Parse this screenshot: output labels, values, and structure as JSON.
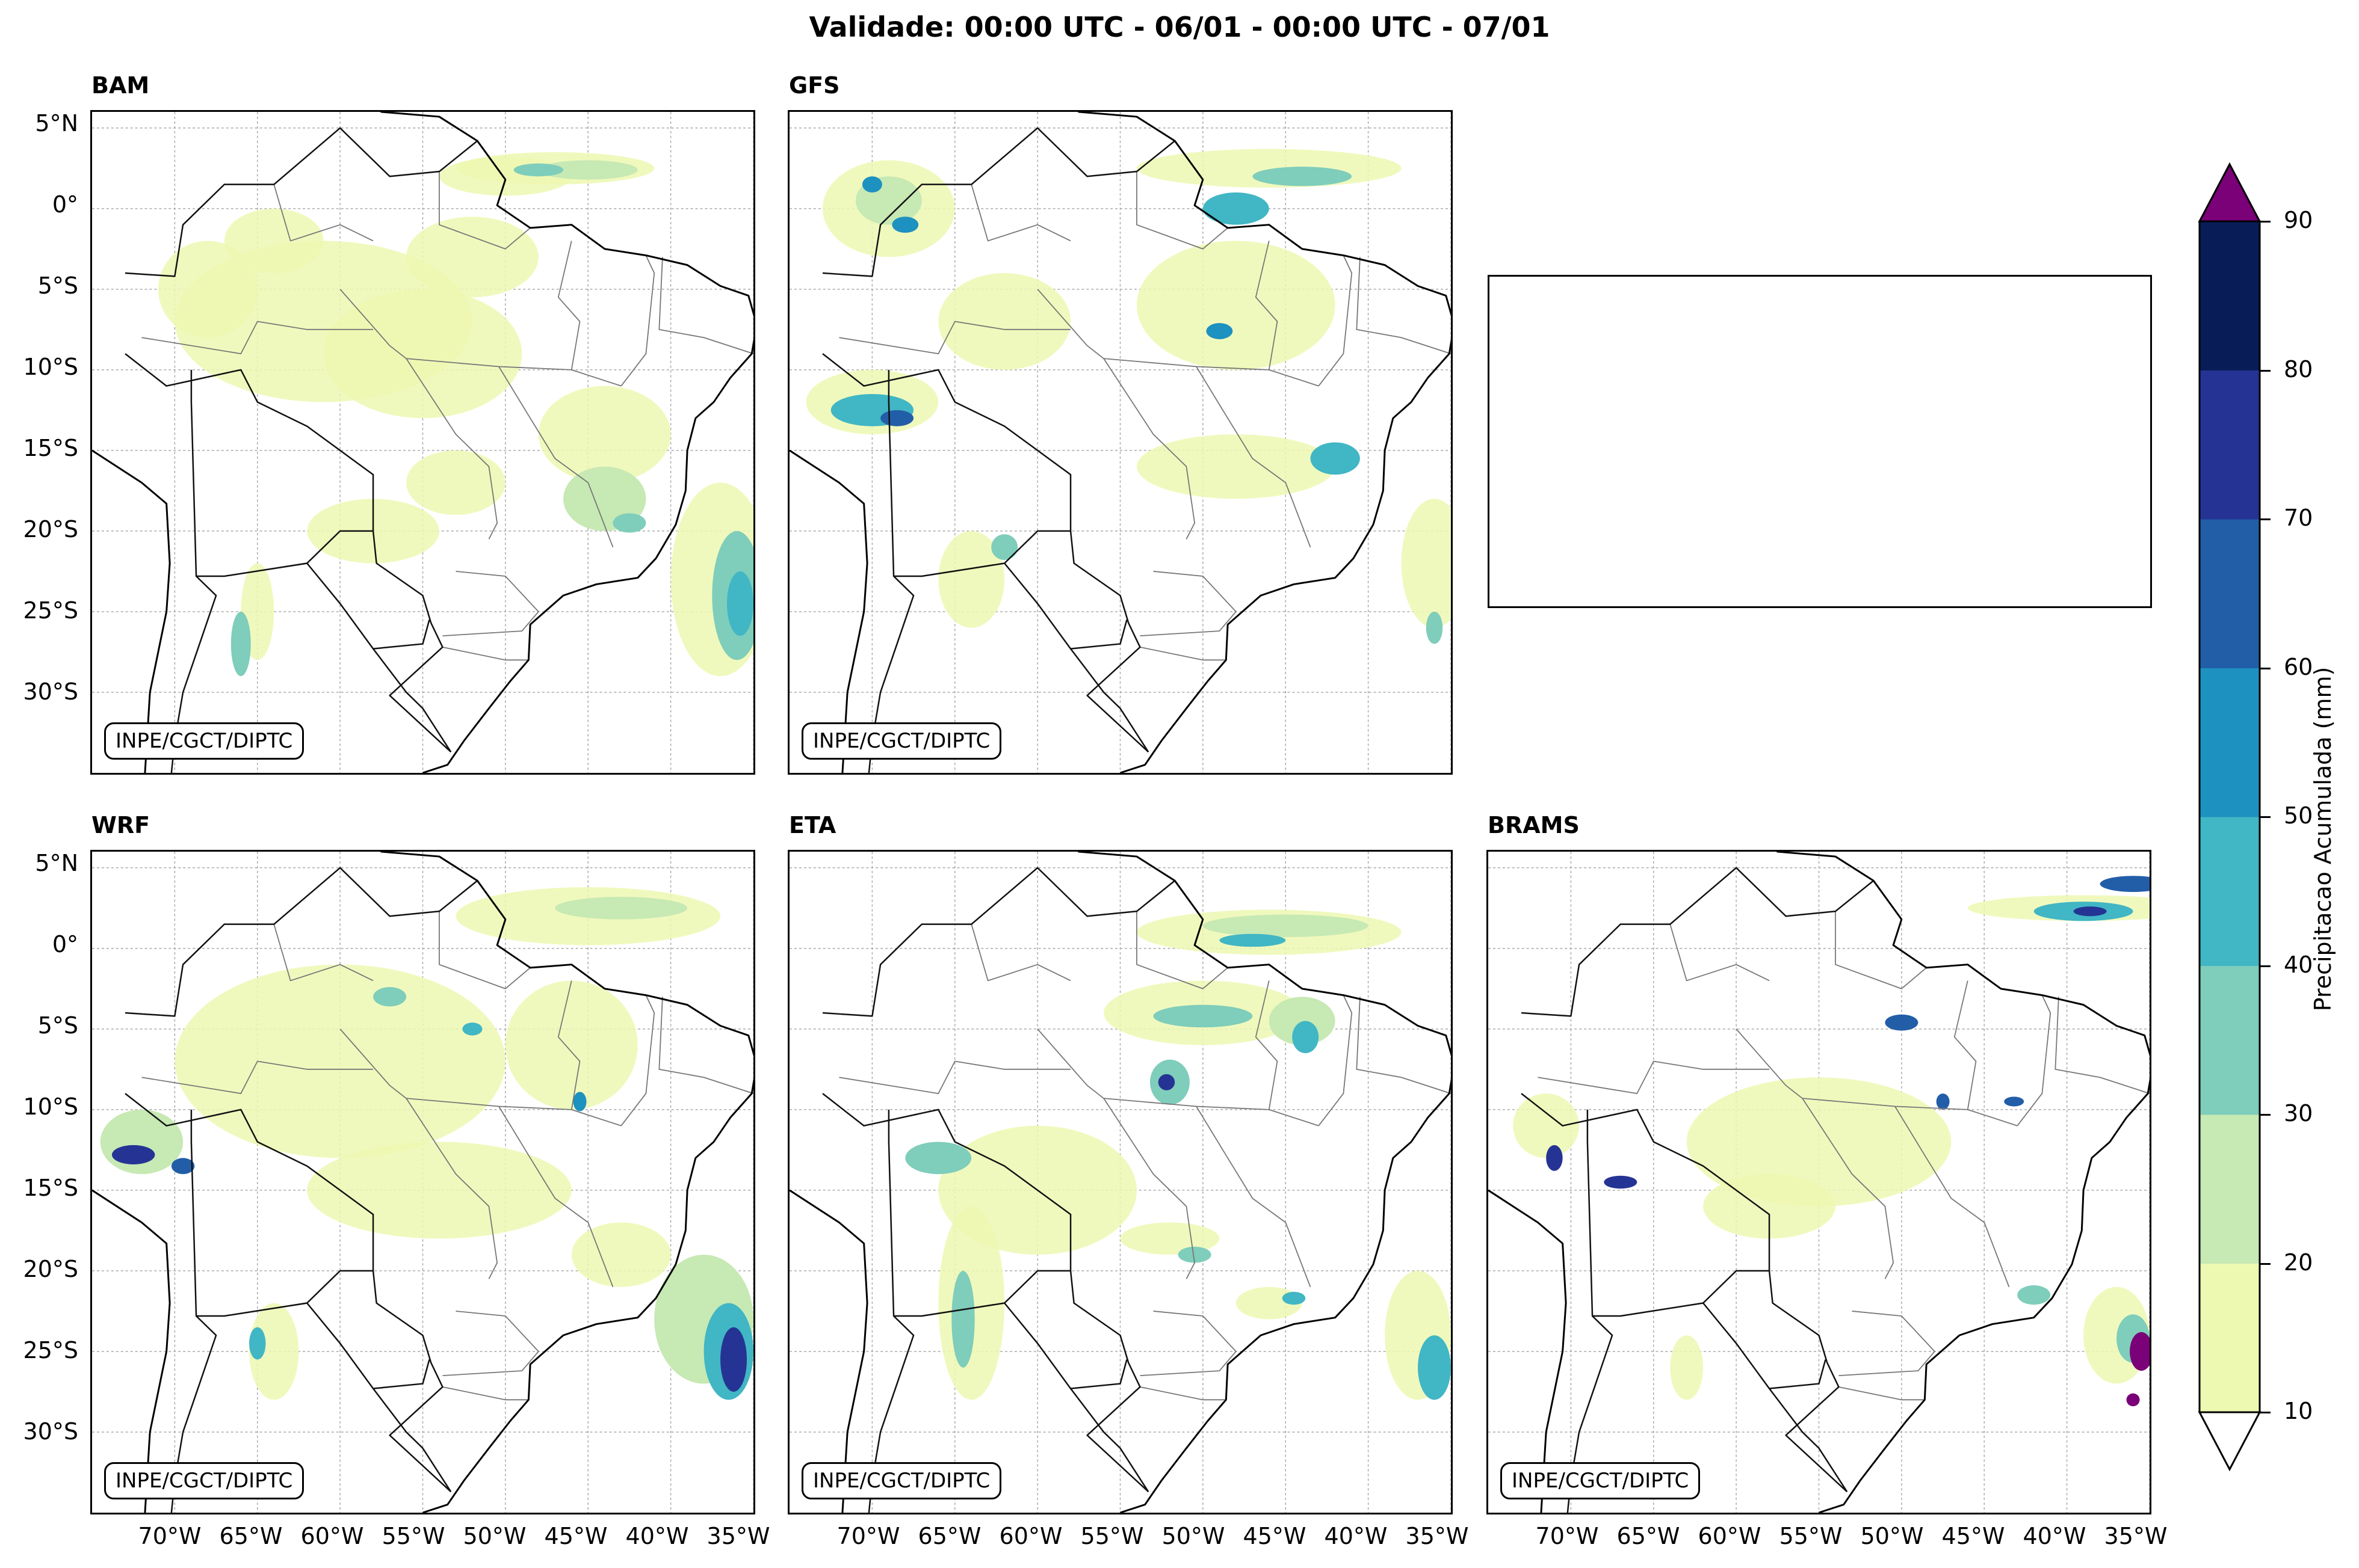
{
  "title": "Validade: 00:00 UTC - 06/01 - 00:00 UTC - 07/01",
  "credit": "INPE/CGCT/DIPTC",
  "panels": [
    {
      "name": "BAM"
    },
    {
      "name": "GFS"
    },
    {
      "name": "WRF"
    },
    {
      "name": "ETA"
    },
    {
      "name": "BRAMS"
    }
  ],
  "latitude_labels": [
    "5°N",
    "0°",
    "5°S",
    "10°S",
    "15°S",
    "20°S",
    "25°S",
    "30°S"
  ],
  "longitude_labels": [
    "70°W",
    "65°W",
    "60°W",
    "55°W",
    "50°W",
    "45°W",
    "40°W",
    "35°W"
  ],
  "colorbar": {
    "label": "Precipitacao Acumulada (mm)",
    "ticks": [
      "10",
      "20",
      "30",
      "40",
      "50",
      "60",
      "70",
      "80",
      "90"
    ],
    "colors": [
      "#edf8b1",
      "#c7e9b4",
      "#7fcdbb",
      "#41b6c4",
      "#1d91c0",
      "#225ea8",
      "#253494",
      "#081d58"
    ],
    "over_color": "#7a0177",
    "under_color": "#ffffff"
  }
}
